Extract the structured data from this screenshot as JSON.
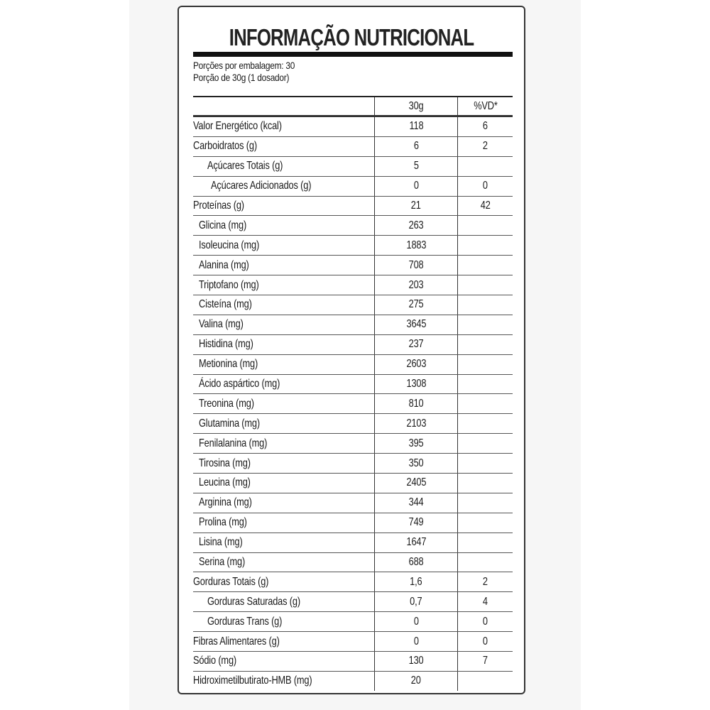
{
  "title": "INFORMAÇÃO NUTRICIONAL",
  "servings_per_package": "Porções por embalagem: 30",
  "serving_size": "Porção de 30g (1 dosador)",
  "headers": [
    "",
    "30g",
    "%VD*"
  ],
  "rows": [
    {
      "name": "Valor Energético (kcal)",
      "amount": "118",
      "dv": "6",
      "indent": 0
    },
    {
      "name": "Carboidratos (g)",
      "amount": "6",
      "dv": "2",
      "indent": 0
    },
    {
      "name": "Açúcares Totais (g)",
      "amount": "5",
      "dv": "",
      "indent": 2
    },
    {
      "name": "Açúcares Adicionados (g)",
      "amount": "0",
      "dv": "0",
      "indent": 3
    },
    {
      "name": "Proteínas (g)",
      "amount": "21",
      "dv": "42",
      "indent": 0
    },
    {
      "name": "Glicina (mg)",
      "amount": "263",
      "dv": "",
      "indent": 1
    },
    {
      "name": "Isoleucina (mg)",
      "amount": "1883",
      "dv": "",
      "indent": 1
    },
    {
      "name": "Alanina (mg)",
      "amount": "708",
      "dv": "",
      "indent": 1
    },
    {
      "name": "Triptofano (mg)",
      "amount": "203",
      "dv": "",
      "indent": 1
    },
    {
      "name": "Cisteína (mg)",
      "amount": "275",
      "dv": "",
      "indent": 1
    },
    {
      "name": "Valina (mg)",
      "amount": "3645",
      "dv": "",
      "indent": 1
    },
    {
      "name": "Histidina (mg)",
      "amount": "237",
      "dv": "",
      "indent": 1
    },
    {
      "name": "Metionina (mg)",
      "amount": "2603",
      "dv": "",
      "indent": 1
    },
    {
      "name": "Ácido aspártico (mg)",
      "amount": "1308",
      "dv": "",
      "indent": 1
    },
    {
      "name": "Treonina (mg)",
      "amount": "810",
      "dv": "",
      "indent": 1
    },
    {
      "name": "Glutamina (mg)",
      "amount": "2103",
      "dv": "",
      "indent": 1
    },
    {
      "name": "Fenilalanina (mg)",
      "amount": "395",
      "dv": "",
      "indent": 1
    },
    {
      "name": "Tirosina (mg)",
      "amount": "350",
      "dv": "",
      "indent": 1
    },
    {
      "name": "Leucina (mg)",
      "amount": "2405",
      "dv": "",
      "indent": 1
    },
    {
      "name": "Arginina (mg)",
      "amount": "344",
      "dv": "",
      "indent": 1
    },
    {
      "name": "Prolina (mg)",
      "amount": "749",
      "dv": "",
      "indent": 1
    },
    {
      "name": "Lisina (mg)",
      "amount": "1647",
      "dv": "",
      "indent": 1
    },
    {
      "name": "Serina (mg)",
      "amount": "688",
      "dv": "",
      "indent": 1
    },
    {
      "name": "Gorduras Totais (g)",
      "amount": "1,6",
      "dv": "2",
      "indent": 0
    },
    {
      "name": "Gorduras Saturadas (g)",
      "amount": "0,7",
      "dv": "4",
      "indent": 2
    },
    {
      "name": "Gorduras Trans (g)",
      "amount": "0",
      "dv": "0",
      "indent": 2
    },
    {
      "name": "Fibras Alimentares (g)",
      "amount": "0",
      "dv": "0",
      "indent": 0
    },
    {
      "name": "Sódio (mg)",
      "amount": "130",
      "dv": "7",
      "indent": 0
    },
    {
      "name": "Hidroximetilbutirato-HMB (mg)",
      "amount": "20",
      "dv": "",
      "indent": 0
    }
  ]
}
